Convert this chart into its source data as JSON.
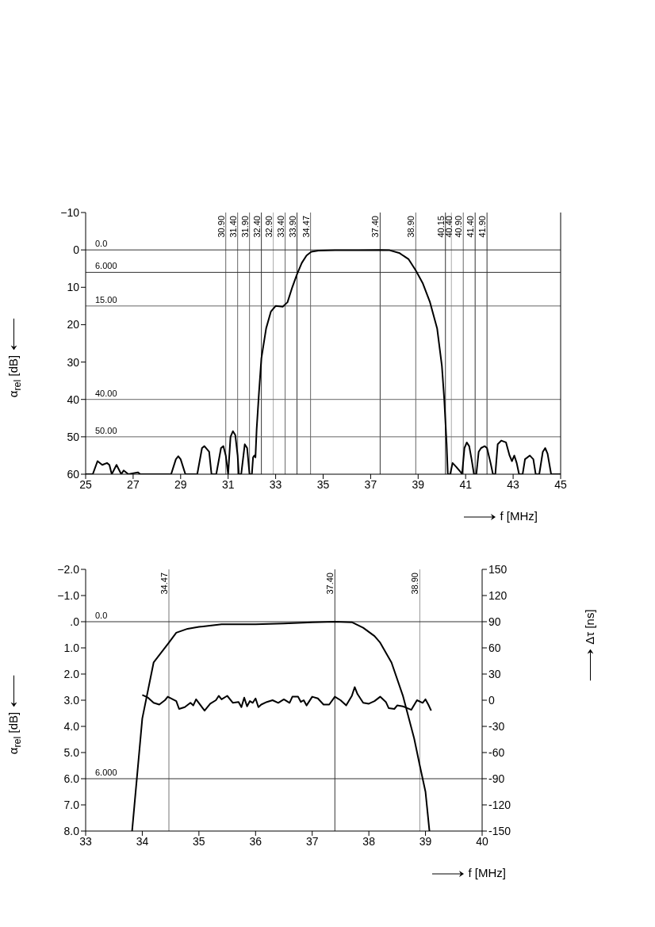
{
  "chart_data": [
    {
      "type": "line",
      "xlabel": "f [MHz]",
      "ylabel": "α$_{rel}$ [dB]",
      "xlim": [
        25,
        45
      ],
      "xticks": [
        25,
        27,
        29,
        31,
        33,
        35,
        37,
        39,
        41,
        43,
        45
      ],
      "ylim": [
        60,
        -10
      ],
      "yticks": [
        {
          "value": -10,
          "label": "−10"
        },
        0,
        10,
        20,
        30,
        40,
        50,
        60
      ],
      "series": [
        {
          "color": "#000000",
          "x": [
            25,
            25.3,
            25.5,
            25.7,
            25.9,
            26.0,
            26.1,
            26.3,
            26.5,
            26.6,
            26.8,
            27.2,
            27.3,
            28.6,
            28.8,
            28.9,
            29.0,
            29.2,
            29.7,
            29.9,
            30.0,
            30.2,
            30.3,
            30.5,
            30.7,
            30.8,
            30.9,
            31.0,
            31.1,
            31.2,
            31.3,
            31.4,
            31.45,
            31.55,
            31.7,
            31.8,
            31.9,
            32.0,
            32.05,
            32.1,
            32.15,
            32.2,
            32.3,
            32.4,
            32.6,
            32.8,
            33.0,
            33.3,
            33.5,
            33.7,
            33.9,
            34.1,
            34.3,
            34.5,
            34.8,
            35.5,
            36.5,
            37.4,
            37.8,
            38.2,
            38.6,
            38.9,
            39.2,
            39.5,
            39.8,
            40.0,
            40.1,
            40.2,
            40.25,
            40.35,
            40.45,
            40.6,
            40.8,
            40.85,
            40.95,
            41.05,
            41.15,
            41.25,
            41.35,
            41.45,
            41.55,
            41.65,
            41.8,
            41.9,
            42.05,
            42.15,
            42.25,
            42.35,
            42.5,
            42.7,
            42.85,
            42.95,
            43.05,
            43.15,
            43.25,
            43.4,
            43.5,
            43.7,
            43.85,
            43.95,
            44.1,
            44.25,
            44.35,
            44.45,
            44.6,
            45
          ],
          "values": [
            60,
            60,
            56.5,
            57.5,
            57,
            57.5,
            60,
            57.5,
            60,
            59,
            60,
            59.5,
            60,
            60,
            56,
            55.2,
            56,
            60,
            60,
            53,
            52.5,
            54,
            60,
            60,
            53,
            52.5,
            55,
            60,
            50,
            48.5,
            49.5,
            55,
            60,
            60,
            52,
            53,
            60,
            60,
            55.5,
            55,
            55.5,
            48,
            38,
            29,
            21,
            16.5,
            15,
            15.2,
            14,
            10,
            6.5,
            3.5,
            1.5,
            0.5,
            0.2,
            0.1,
            0.1,
            0,
            0.1,
            0.8,
            2.5,
            5.5,
            9,
            14,
            21,
            31,
            40,
            52,
            60,
            60,
            57,
            58,
            59.5,
            60,
            53,
            51.5,
            52.5,
            56,
            60,
            60,
            54,
            53,
            52.5,
            53,
            57,
            60,
            60,
            52,
            51,
            51.5,
            55,
            56.5,
            55,
            57,
            60,
            60,
            56,
            55,
            56,
            60,
            60,
            54,
            53,
            54.5,
            60,
            60
          ]
        }
      ],
      "ref_lines": [
        {
          "axis": "x",
          "value": 30.9,
          "label": "30.90",
          "color": "#666666"
        },
        {
          "axis": "x",
          "value": 31.4,
          "label": "31.40",
          "color": "#666666"
        },
        {
          "axis": "x",
          "value": 31.9,
          "label": "31.90",
          "color": "#666666"
        },
        {
          "axis": "x",
          "value": 32.4,
          "label": "32.40",
          "color": "#333333"
        },
        {
          "axis": "x",
          "value": 32.9,
          "label": "32.90",
          "color": "#aaaaaa"
        },
        {
          "axis": "x",
          "value": 33.4,
          "label": "33.40",
          "color": "#666666"
        },
        {
          "axis": "x",
          "value": 33.9,
          "label": "33.90",
          "color": "#333333"
        },
        {
          "axis": "x",
          "value": 34.47,
          "label": "34.47",
          "color": "#666666"
        },
        {
          "axis": "x",
          "value": 37.4,
          "label": "37.40",
          "color": "#333333"
        },
        {
          "axis": "x",
          "value": 38.9,
          "label": "38.90",
          "color": "#666666"
        },
        {
          "axis": "x",
          "value": 40.15,
          "label": "40.15",
          "color": "#333333"
        },
        {
          "axis": "x",
          "value": 40.4,
          "label": "40.40",
          "color": "#aaaaaa"
        },
        {
          "axis": "x",
          "value": 40.9,
          "label": "40.90",
          "color": "#666666"
        },
        {
          "axis": "x",
          "value": 41.4,
          "label": "41.40",
          "color": "#333333"
        },
        {
          "axis": "x",
          "value": 41.9,
          "label": "41.90",
          "color": "#333333"
        },
        {
          "axis": "y",
          "value": 0,
          "label": "0.0",
          "color": "#333333"
        },
        {
          "axis": "y",
          "value": 6,
          "label": "6.000",
          "color": "#333333"
        },
        {
          "axis": "y",
          "value": 15,
          "label": "15.00",
          "color": "#666666"
        },
        {
          "axis": "y",
          "value": 40,
          "label": "40.00",
          "color": "#666666"
        },
        {
          "axis": "y",
          "value": 50,
          "label": "50.00",
          "color": "#666666"
        }
      ]
    },
    {
      "type": "line",
      "xlabel": "f [MHz]",
      "ylabel": "α$_{rel}$ [dB]",
      "y2label": "Δτ [ns]",
      "xlim": [
        33,
        40
      ],
      "xticks": [
        33,
        34,
        35,
        36,
        37,
        38,
        39,
        40
      ],
      "ylim": [
        8,
        -2
      ],
      "yticks": [
        {
          "value": -2,
          "label": "−2.0"
        },
        {
          "value": -1,
          "label": "−1.0"
        },
        {
          "value": 0,
          "label": ".0"
        },
        {
          "value": 1,
          "label": "1.0"
        },
        {
          "value": 2,
          "label": "2.0"
        },
        {
          "value": 3,
          "label": "3.0"
        },
        {
          "value": 4,
          "label": "4.0"
        },
        {
          "value": 5,
          "label": "5.0"
        },
        {
          "value": 6,
          "label": "6.0"
        },
        {
          "value": 7,
          "label": "7.0"
        },
        {
          "value": 8,
          "label": "8.0"
        }
      ],
      "y2lim": [
        -150,
        150
      ],
      "y2ticks": [
        -150,
        -120,
        -90,
        -60,
        -30,
        0,
        30,
        60,
        90,
        120,
        150
      ],
      "series": [
        {
          "color": "#000000",
          "x": [
            33.82,
            34.0,
            34.2,
            34.47,
            34.6,
            34.8,
            35.0,
            35.4,
            36.0,
            36.5,
            37.0,
            37.4,
            37.7,
            37.9,
            38.1,
            38.2,
            38.4,
            38.6,
            38.8,
            38.9,
            39.0,
            39.07
          ],
          "values": [
            8,
            3.7,
            1.56,
            0.8,
            0.42,
            0.27,
            0.2,
            0.1,
            0.1,
            0.07,
            0.02,
            0,
            0.02,
            0.23,
            0.55,
            0.8,
            1.56,
            2.82,
            4.46,
            5.5,
            6.5,
            8
          ]
        },
        {
          "color": "#000000",
          "axis": "y2",
          "x": [
            34.0,
            34.1,
            34.2,
            34.3,
            34.4,
            34.45,
            34.6,
            34.65,
            34.75,
            34.85,
            34.9,
            34.95,
            35.1,
            35.2,
            35.3,
            35.35,
            35.4,
            35.5,
            35.6,
            35.7,
            35.75,
            35.8,
            35.85,
            35.9,
            35.95,
            36.0,
            36.05,
            36.1,
            36.2,
            36.3,
            36.4,
            36.5,
            36.6,
            36.65,
            36.75,
            36.8,
            36.85,
            36.9,
            37.0,
            37.1,
            37.2,
            37.3,
            37.4,
            37.5,
            37.6,
            37.7,
            37.75,
            37.8,
            37.9,
            38.0,
            38.1,
            38.2,
            38.3,
            38.35,
            38.45,
            38.5,
            38.6,
            38.75,
            38.85,
            38.95,
            39.0,
            39.05,
            39.1
          ],
          "values": [
            6,
            3,
            -3,
            -5,
            0,
            4,
            -1,
            -10,
            -8,
            -3,
            -6,
            1,
            -12,
            -4,
            0,
            5,
            1,
            5,
            -3,
            -2,
            -8,
            3,
            -7,
            -1,
            -3,
            2,
            -8,
            -5,
            -2,
            0,
            -3,
            1,
            -3,
            4,
            4,
            -2,
            0,
            -6,
            4,
            2,
            -5,
            -5,
            4,
            0,
            -6,
            5,
            15,
            7,
            -3,
            -4,
            -1,
            4,
            -2,
            -9,
            -10,
            -6,
            -7,
            -11,
            0,
            -3,
            1,
            -5,
            -12
          ]
        }
      ],
      "ref_lines": [
        {
          "axis": "x",
          "value": 34.47,
          "label": "34.47",
          "color": "#777777"
        },
        {
          "axis": "x",
          "value": 37.4,
          "label": "37.40",
          "color": "#333333"
        },
        {
          "axis": "x",
          "value": 38.9,
          "label": "38.90",
          "color": "#999999"
        },
        {
          "axis": "y",
          "value": 0,
          "label": "0.0",
          "color": "#333333"
        },
        {
          "axis": "y",
          "value": 6,
          "label": "6.000",
          "color": "#333333"
        }
      ]
    }
  ]
}
